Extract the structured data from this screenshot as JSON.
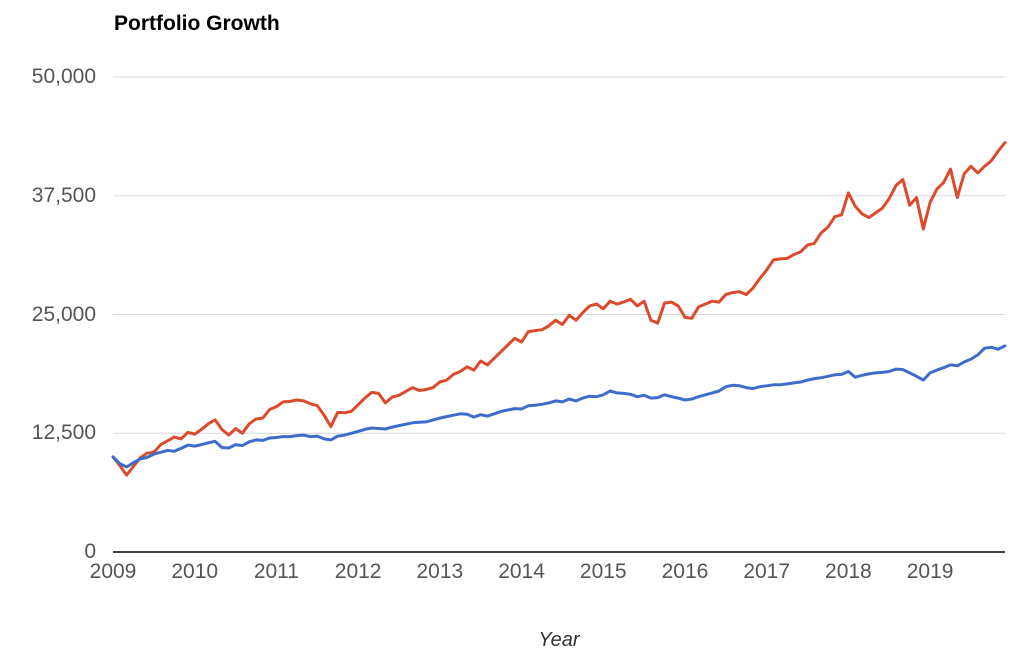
{
  "chart_data": {
    "type": "line",
    "title": "Portfolio Growth",
    "xlabel": "Year",
    "ylabel": "",
    "ylim": [
      0,
      50000
    ],
    "xlim_years": [
      2009,
      2020
    ],
    "grid": "horizontal-only",
    "legend_position": "none",
    "background_color": "#ffffff",
    "gridline_color": "#d9d9d9",
    "axis_line_color": "#424242",
    "tick_label_color": "#555555",
    "y_ticks": [
      0,
      12500,
      25000,
      37500,
      50000
    ],
    "y_tick_labels": [
      "0",
      "12,500",
      "25,000",
      "37,500",
      "50,000"
    ],
    "x_tick_labels": [
      "2009",
      "2010",
      "2011",
      "2012",
      "2013",
      "2014",
      "2015",
      "2016",
      "2017",
      "2018",
      "2019"
    ],
    "points_per_year": 12,
    "series": [
      {
        "name": "red-line",
        "color": "#db4a2b",
        "stroke_width": 3,
        "values": [
          10000,
          9100,
          8100,
          9000,
          9900,
          10400,
          10500,
          11300,
          11700,
          12100,
          11900,
          12600,
          12400,
          12900,
          13500,
          13900,
          12900,
          12300,
          13000,
          12500,
          13500,
          14000,
          14100,
          15000,
          15300,
          15800,
          15850,
          16000,
          15900,
          15600,
          15400,
          14400,
          13200,
          14700,
          14650,
          14800,
          15500,
          16200,
          16800,
          16700,
          15700,
          16300,
          16500,
          16900,
          17300,
          17000,
          17100,
          17300,
          17900,
          18100,
          18700,
          19000,
          19500,
          19150,
          20100,
          19700,
          20400,
          21100,
          21800,
          22500,
          22100,
          23200,
          23300,
          23400,
          23800,
          24400,
          23950,
          24900,
          24400,
          25200,
          25900,
          26100,
          25600,
          26400,
          26100,
          26300,
          26600,
          25900,
          26400,
          24400,
          24100,
          26200,
          26300,
          25900,
          24700,
          24600,
          25800,
          26100,
          26400,
          26300,
          27100,
          27300,
          27400,
          27100,
          27800,
          28800,
          29700,
          30750,
          30850,
          30900,
          31300,
          31600,
          32300,
          32500,
          33600,
          34200,
          35300,
          35500,
          37800,
          36400,
          35600,
          35200,
          35700,
          36200,
          37200,
          38600,
          39200,
          36500,
          37300,
          34000,
          36800,
          38200,
          38900,
          40300,
          37300,
          39800,
          40600,
          39900,
          40600,
          41200,
          42200,
          43100
        ]
      },
      {
        "name": "blue-line",
        "color": "#3d6dcb",
        "stroke_width": 3,
        "values": [
          10000,
          9300,
          8950,
          9400,
          9800,
          9950,
          10300,
          10500,
          10700,
          10600,
          10900,
          11250,
          11150,
          11300,
          11500,
          11650,
          11000,
          10950,
          11300,
          11200,
          11600,
          11800,
          11750,
          12000,
          12050,
          12150,
          12150,
          12250,
          12300,
          12150,
          12200,
          11900,
          11800,
          12200,
          12300,
          12500,
          12700,
          12900,
          13050,
          13000,
          12950,
          13150,
          13300,
          13450,
          13600,
          13650,
          13700,
          13900,
          14100,
          14250,
          14400,
          14550,
          14500,
          14200,
          14450,
          14300,
          14550,
          14800,
          14950,
          15100,
          15050,
          15400,
          15450,
          15550,
          15700,
          15900,
          15800,
          16100,
          15900,
          16200,
          16400,
          16350,
          16550,
          16950,
          16750,
          16700,
          16600,
          16350,
          16500,
          16200,
          16250,
          16550,
          16350,
          16200,
          16000,
          16100,
          16350,
          16550,
          16750,
          16950,
          17400,
          17550,
          17500,
          17300,
          17200,
          17400,
          17500,
          17600,
          17600,
          17700,
          17800,
          17900,
          18100,
          18250,
          18350,
          18500,
          18650,
          18700,
          19000,
          18400,
          18600,
          18750,
          18850,
          18900,
          19000,
          19250,
          19200,
          18850,
          18500,
          18100,
          18850,
          19150,
          19400,
          19700,
          19600,
          20000,
          20300,
          20750,
          21450,
          21550,
          21350,
          21700
        ]
      }
    ]
  }
}
